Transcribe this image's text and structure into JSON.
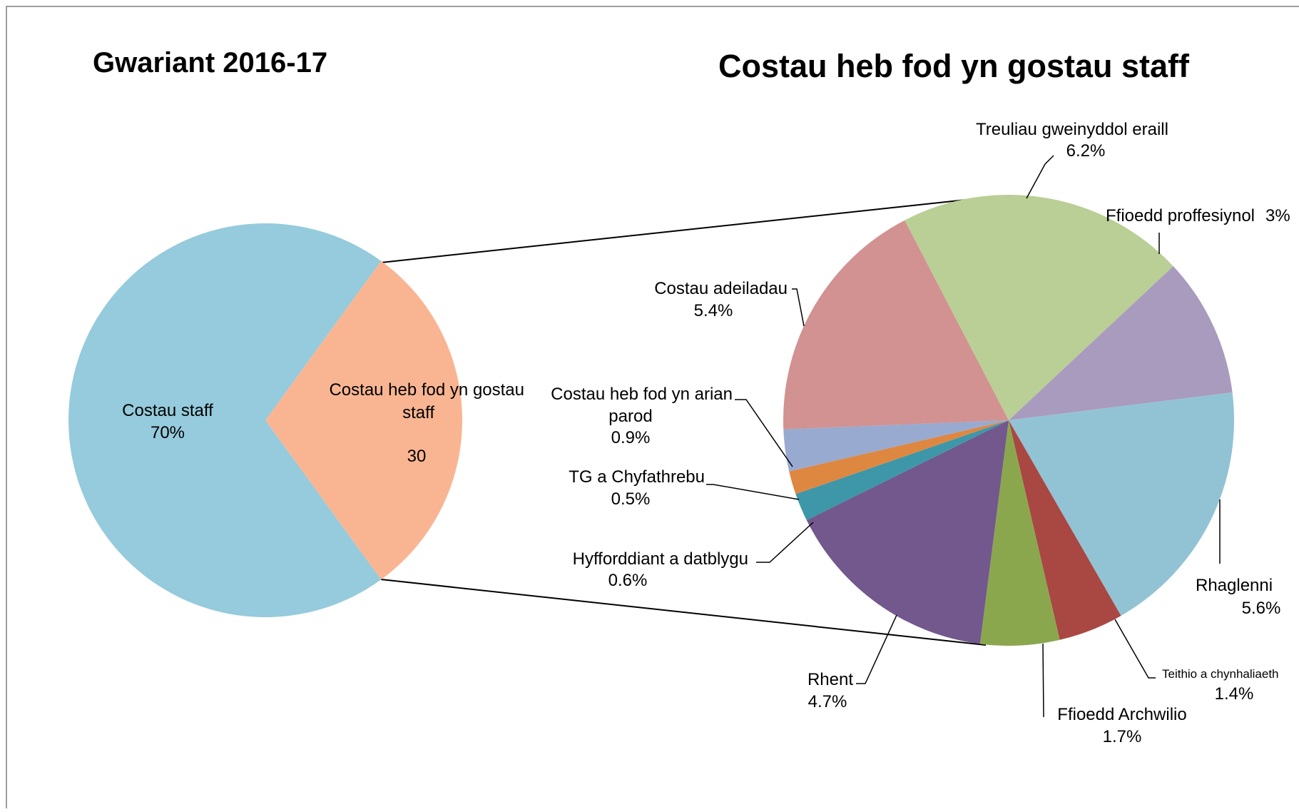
{
  "chart_data": [
    {
      "type": "pie",
      "title": "Gwariant 2016-17",
      "slices": [
        {
          "label": "Costau heb fod yn gostau staff",
          "value": 30,
          "display": "30",
          "color": "#F9B592"
        },
        {
          "label": "Costau staff",
          "value": 70,
          "display": "70%",
          "color": "#95CBDC"
        }
      ]
    },
    {
      "type": "pie",
      "title": "Costau heb fod yn gostau staff",
      "slices": [
        {
          "label": "Treuliau gweinyddol eraill",
          "value": 6.2,
          "display": "6.2%",
          "color": "#B9CF96"
        },
        {
          "label": "Ffioedd proffesiynol",
          "value": 3,
          "display": "3%",
          "color": "#A99BBE"
        },
        {
          "label": "Rhaglenni",
          "value": 5.6,
          "display": "5.6%",
          "color": "#92C3D4"
        },
        {
          "label": "Teithio a chynhaliaeth",
          "value": 1.4,
          "display": "1.4%",
          "color": "#A94743"
        },
        {
          "label": "Ffioedd Archwilio",
          "value": 1.7,
          "display": "1.7%",
          "color": "#8BA74E"
        },
        {
          "label": "Rhent",
          "value": 4.7,
          "display": "4.7%",
          "color": "#72588C"
        },
        {
          "label": "Hyfforddiant a datblygu",
          "value": 0.6,
          "display": "0.6%",
          "color": "#3D97A8"
        },
        {
          "label": "TG a Chyfathrebu",
          "value": 0.5,
          "display": "0.5%",
          "color": "#DE8741"
        },
        {
          "label": "Costau heb fod yn arian parod",
          "value": 0.9,
          "display": "0.9%",
          "color": "#98AAD0"
        },
        {
          "label": "Costau adeiladau",
          "value": 5.4,
          "display": "5.4%",
          "color": "#D29291"
        }
      ]
    }
  ]
}
